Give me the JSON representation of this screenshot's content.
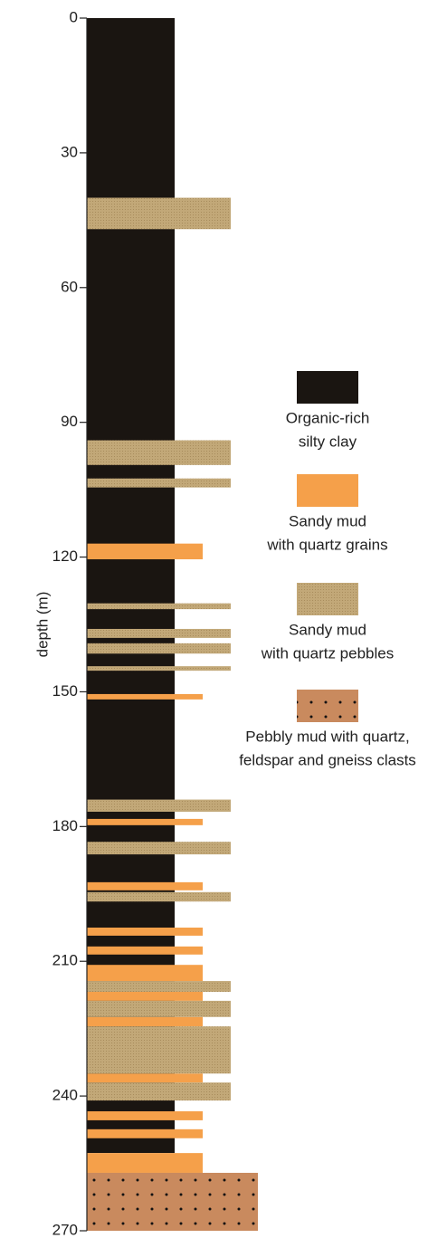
{
  "chart_data": {
    "type": "column",
    "ylabel": "depth (m)",
    "ylim": [
      0,
      270
    ],
    "yticks": [
      0,
      30,
      60,
      90,
      120,
      150,
      180,
      210,
      240,
      270
    ],
    "series": [
      {
        "name": [
          "Organic-rich",
          "silty clay"
        ],
        "color": "#1a1511",
        "pattern": "none",
        "intervals": [
          [
            0,
            252.7
          ]
        ]
      },
      {
        "name": [
          "Sandy mud",
          "with quartz grains"
        ],
        "color": "#f5a04a",
        "pattern": "none",
        "intervals": [
          [
            117,
            120.5
          ],
          [
            150.5,
            151.7
          ],
          [
            178.3,
            179.7
          ],
          [
            192.4,
            194.2
          ],
          [
            202.5,
            204.3
          ],
          [
            206.7,
            208.5
          ],
          [
            210.8,
            214.4
          ],
          [
            216.8,
            218.8
          ],
          [
            222.4,
            224.5
          ],
          [
            235,
            237
          ],
          [
            243.4,
            245.4
          ],
          [
            247.4,
            249.4
          ],
          [
            252.7,
            257.1
          ]
        ]
      },
      {
        "name": [
          "Sandy mud",
          "with quartz pebbles"
        ],
        "color": "#c2a878",
        "pattern": "fine",
        "intervals": [
          [
            40,
            47
          ],
          [
            94,
            99.5
          ],
          [
            102.5,
            104.5
          ],
          [
            130.3,
            131.6
          ],
          [
            136,
            138
          ],
          [
            139.2,
            141.5
          ],
          [
            144.3,
            145.3
          ],
          [
            174,
            176.7
          ],
          [
            183.4,
            186.2
          ],
          [
            194.6,
            196.7
          ],
          [
            214.4,
            216.8
          ],
          [
            218.8,
            222.4
          ],
          [
            224.5,
            235
          ],
          [
            237,
            241
          ]
        ]
      },
      {
        "name": [
          "Pebbly mud with quartz,",
          "feldspar and gneiss clasts"
        ],
        "color": "#c98a5e",
        "pattern": "dots",
        "intervals": [
          [
            257.1,
            270
          ]
        ]
      }
    ]
  }
}
